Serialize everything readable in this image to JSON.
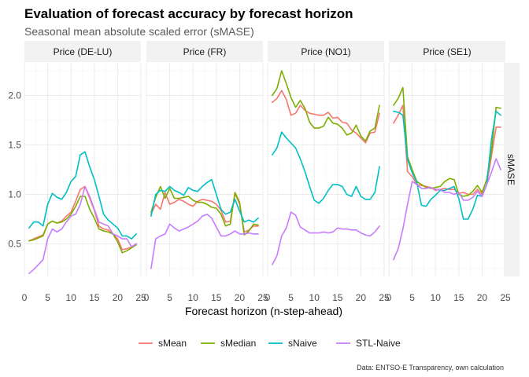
{
  "chart_data": {
    "type": "line",
    "title": "Evaluation of forecast accuracy by forecast horizon",
    "subtitle": "Seasonal mean absolute scaled error (sMASE)",
    "xlabel": "Forecast horizon (n-step-ahead)",
    "ylabel_strip": "sMASE",
    "caption": "Data: ENTSO-E Transparency, own calculation",
    "x": [
      1,
      2,
      3,
      4,
      5,
      6,
      7,
      8,
      9,
      10,
      11,
      12,
      13,
      14,
      15,
      16,
      17,
      18,
      19,
      20,
      21,
      22,
      23,
      24
    ],
    "xlim": [
      0,
      25
    ],
    "ylim": [
      0.17,
      2.33
    ],
    "x_ticks": [
      "0",
      "5",
      "10",
      "15",
      "20",
      "25"
    ],
    "y_ticks": [
      "0.5",
      "1.0",
      "1.5",
      "2.0"
    ],
    "y_tick_values": [
      0.5,
      1.0,
      1.5,
      2.0
    ],
    "x_tick_values": [
      0,
      5,
      10,
      15,
      20,
      25
    ],
    "legend": [
      {
        "name": "sMean",
        "color": "#F8766D"
      },
      {
        "name": "sMedian",
        "color": "#7CAE00"
      },
      {
        "name": "sNaive",
        "color": "#00BFC4"
      },
      {
        "name": "STL-Naive",
        "color": "#C77CFF"
      }
    ],
    "panels": [
      {
        "label": "Price (DE-LU)",
        "series": [
          {
            "name": "sMean",
            "values": [
              0.53,
              0.55,
              0.57,
              0.59,
              0.7,
              0.73,
              0.71,
              0.73,
              0.78,
              0.82,
              0.93,
              1.05,
              1.08,
              0.96,
              0.84,
              0.68,
              0.65,
              0.64,
              0.6,
              0.55,
              0.44,
              0.45,
              0.47,
              0.5
            ]
          },
          {
            "name": "sMedian",
            "values": [
              0.53,
              0.54,
              0.56,
              0.58,
              0.7,
              0.73,
              0.71,
              0.72,
              0.75,
              0.8,
              0.88,
              0.98,
              0.98,
              0.85,
              0.76,
              0.65,
              0.63,
              0.62,
              0.6,
              0.52,
              0.41,
              0.43,
              0.46,
              0.49
            ]
          },
          {
            "name": "sNaive",
            "values": [
              0.66,
              0.72,
              0.72,
              0.68,
              0.9,
              1.01,
              0.97,
              0.95,
              1.02,
              1.13,
              1.18,
              1.4,
              1.43,
              1.28,
              1.15,
              0.98,
              0.8,
              0.74,
              0.7,
              0.66,
              0.58,
              0.58,
              0.55,
              0.6
            ]
          },
          {
            "name": "STL-Naive",
            "values": [
              0.2,
              0.24,
              0.29,
              0.34,
              0.55,
              0.65,
              0.62,
              0.65,
              0.72,
              0.78,
              0.8,
              0.9,
              1.08,
              0.98,
              0.85,
              0.72,
              0.7,
              0.68,
              0.6,
              0.58,
              0.55,
              0.55,
              0.47,
              0.5
            ]
          }
        ]
      },
      {
        "label": "Price (FR)",
        "series": [
          {
            "name": "sMean",
            "values": [
              0.8,
              0.9,
              0.85,
              1.02,
              0.9,
              0.92,
              0.95,
              0.93,
              0.9,
              0.88,
              0.93,
              0.95,
              0.94,
              0.93,
              0.9,
              0.84,
              0.72,
              0.73,
              1.01,
              0.9,
              0.62,
              0.64,
              0.68,
              0.68
            ]
          },
          {
            "name": "sMedian",
            "values": [
              0.82,
              0.97,
              1.08,
              0.96,
              1.06,
              0.96,
              0.96,
              0.97,
              0.98,
              0.94,
              0.92,
              0.92,
              0.9,
              0.87,
              0.86,
              0.8,
              0.68,
              0.7,
              1.02,
              0.92,
              0.59,
              0.63,
              0.7,
              0.69
            ]
          },
          {
            "name": "sNaive",
            "values": [
              0.78,
              1.0,
              1.04,
              1.03,
              1.08,
              1.04,
              1.02,
              0.99,
              1.07,
              1.04,
              1.03,
              1.08,
              1.12,
              1.15,
              1.0,
              0.85,
              0.8,
              0.82,
              0.95,
              0.83,
              0.72,
              0.74,
              0.72,
              0.76
            ]
          },
          {
            "name": "STL-Naive",
            "values": [
              0.25,
              0.55,
              0.58,
              0.6,
              0.7,
              0.66,
              0.63,
              0.65,
              0.67,
              0.7,
              0.73,
              0.78,
              0.8,
              0.76,
              0.67,
              0.58,
              0.58,
              0.6,
              0.63,
              0.6,
              0.6,
              0.61,
              0.6,
              0.6
            ]
          }
        ]
      },
      {
        "label": "Price (NO1)",
        "series": [
          {
            "name": "sMean",
            "values": [
              1.93,
              1.97,
              2.05,
              1.96,
              1.8,
              1.82,
              1.9,
              1.85,
              1.82,
              1.81,
              1.8,
              1.8,
              1.83,
              1.77,
              1.78,
              1.73,
              1.72,
              1.65,
              1.62,
              1.57,
              1.52,
              1.62,
              1.63,
              1.82
            ]
          },
          {
            "name": "sMedian",
            "values": [
              2.0,
              2.07,
              2.25,
              2.12,
              1.98,
              1.88,
              1.95,
              1.87,
              1.73,
              1.67,
              1.67,
              1.69,
              1.78,
              1.72,
              1.71,
              1.67,
              1.6,
              1.62,
              1.7,
              1.59,
              1.54,
              1.64,
              1.67,
              1.9
            ]
          },
          {
            "name": "sNaive",
            "values": [
              1.4,
              1.47,
              1.63,
              1.57,
              1.52,
              1.47,
              1.36,
              1.23,
              1.08,
              0.94,
              0.91,
              0.96,
              1.04,
              1.1,
              1.1,
              1.08,
              1.0,
              0.98,
              1.08,
              0.98,
              0.95,
              0.95,
              1.02,
              1.28
            ]
          },
          {
            "name": "STL-Naive",
            "values": [
              0.29,
              0.38,
              0.58,
              0.66,
              0.82,
              0.79,
              0.67,
              0.64,
              0.61,
              0.61,
              0.61,
              0.62,
              0.61,
              0.62,
              0.66,
              0.65,
              0.65,
              0.64,
              0.64,
              0.61,
              0.59,
              0.58,
              0.62,
              0.68
            ]
          }
        ]
      },
      {
        "label": "Price (SE1)",
        "series": [
          {
            "name": "sMean",
            "values": [
              1.72,
              1.8,
              1.9,
              1.23,
              1.18,
              1.1,
              1.09,
              1.08,
              1.07,
              1.04,
              1.05,
              1.06,
              1.05,
              1.05,
              1.01,
              1.02,
              1.0,
              1.0,
              1.05,
              1.0,
              1.1,
              1.38,
              1.68,
              1.68
            ]
          },
          {
            "name": "sMedian",
            "values": [
              1.9,
              1.97,
              2.08,
              1.38,
              1.25,
              1.13,
              1.1,
              1.07,
              1.06,
              1.07,
              1.08,
              1.13,
              1.16,
              1.15,
              1.0,
              0.98,
              0.99,
              1.03,
              1.09,
              1.02,
              1.15,
              1.43,
              1.88,
              1.87
            ]
          },
          {
            "name": "sNaive",
            "values": [
              1.84,
              1.83,
              1.8,
              1.35,
              1.22,
              1.12,
              0.89,
              0.88,
              0.95,
              0.99,
              1.04,
              1.04,
              1.06,
              1.08,
              0.96,
              0.75,
              0.75,
              0.85,
              0.99,
              0.98,
              1.1,
              1.55,
              1.84,
              1.8
            ]
          },
          {
            "name": "STL-Naive",
            "values": [
              0.34,
              0.45,
              0.65,
              0.9,
              1.13,
              1.1,
              1.06,
              1.06,
              1.07,
              1.05,
              1.05,
              1.02,
              1.02,
              1.0,
              1.02,
              0.94,
              0.94,
              0.97,
              1.03,
              0.98,
              1.1,
              1.22,
              1.36,
              1.25
            ]
          }
        ]
      }
    ]
  }
}
